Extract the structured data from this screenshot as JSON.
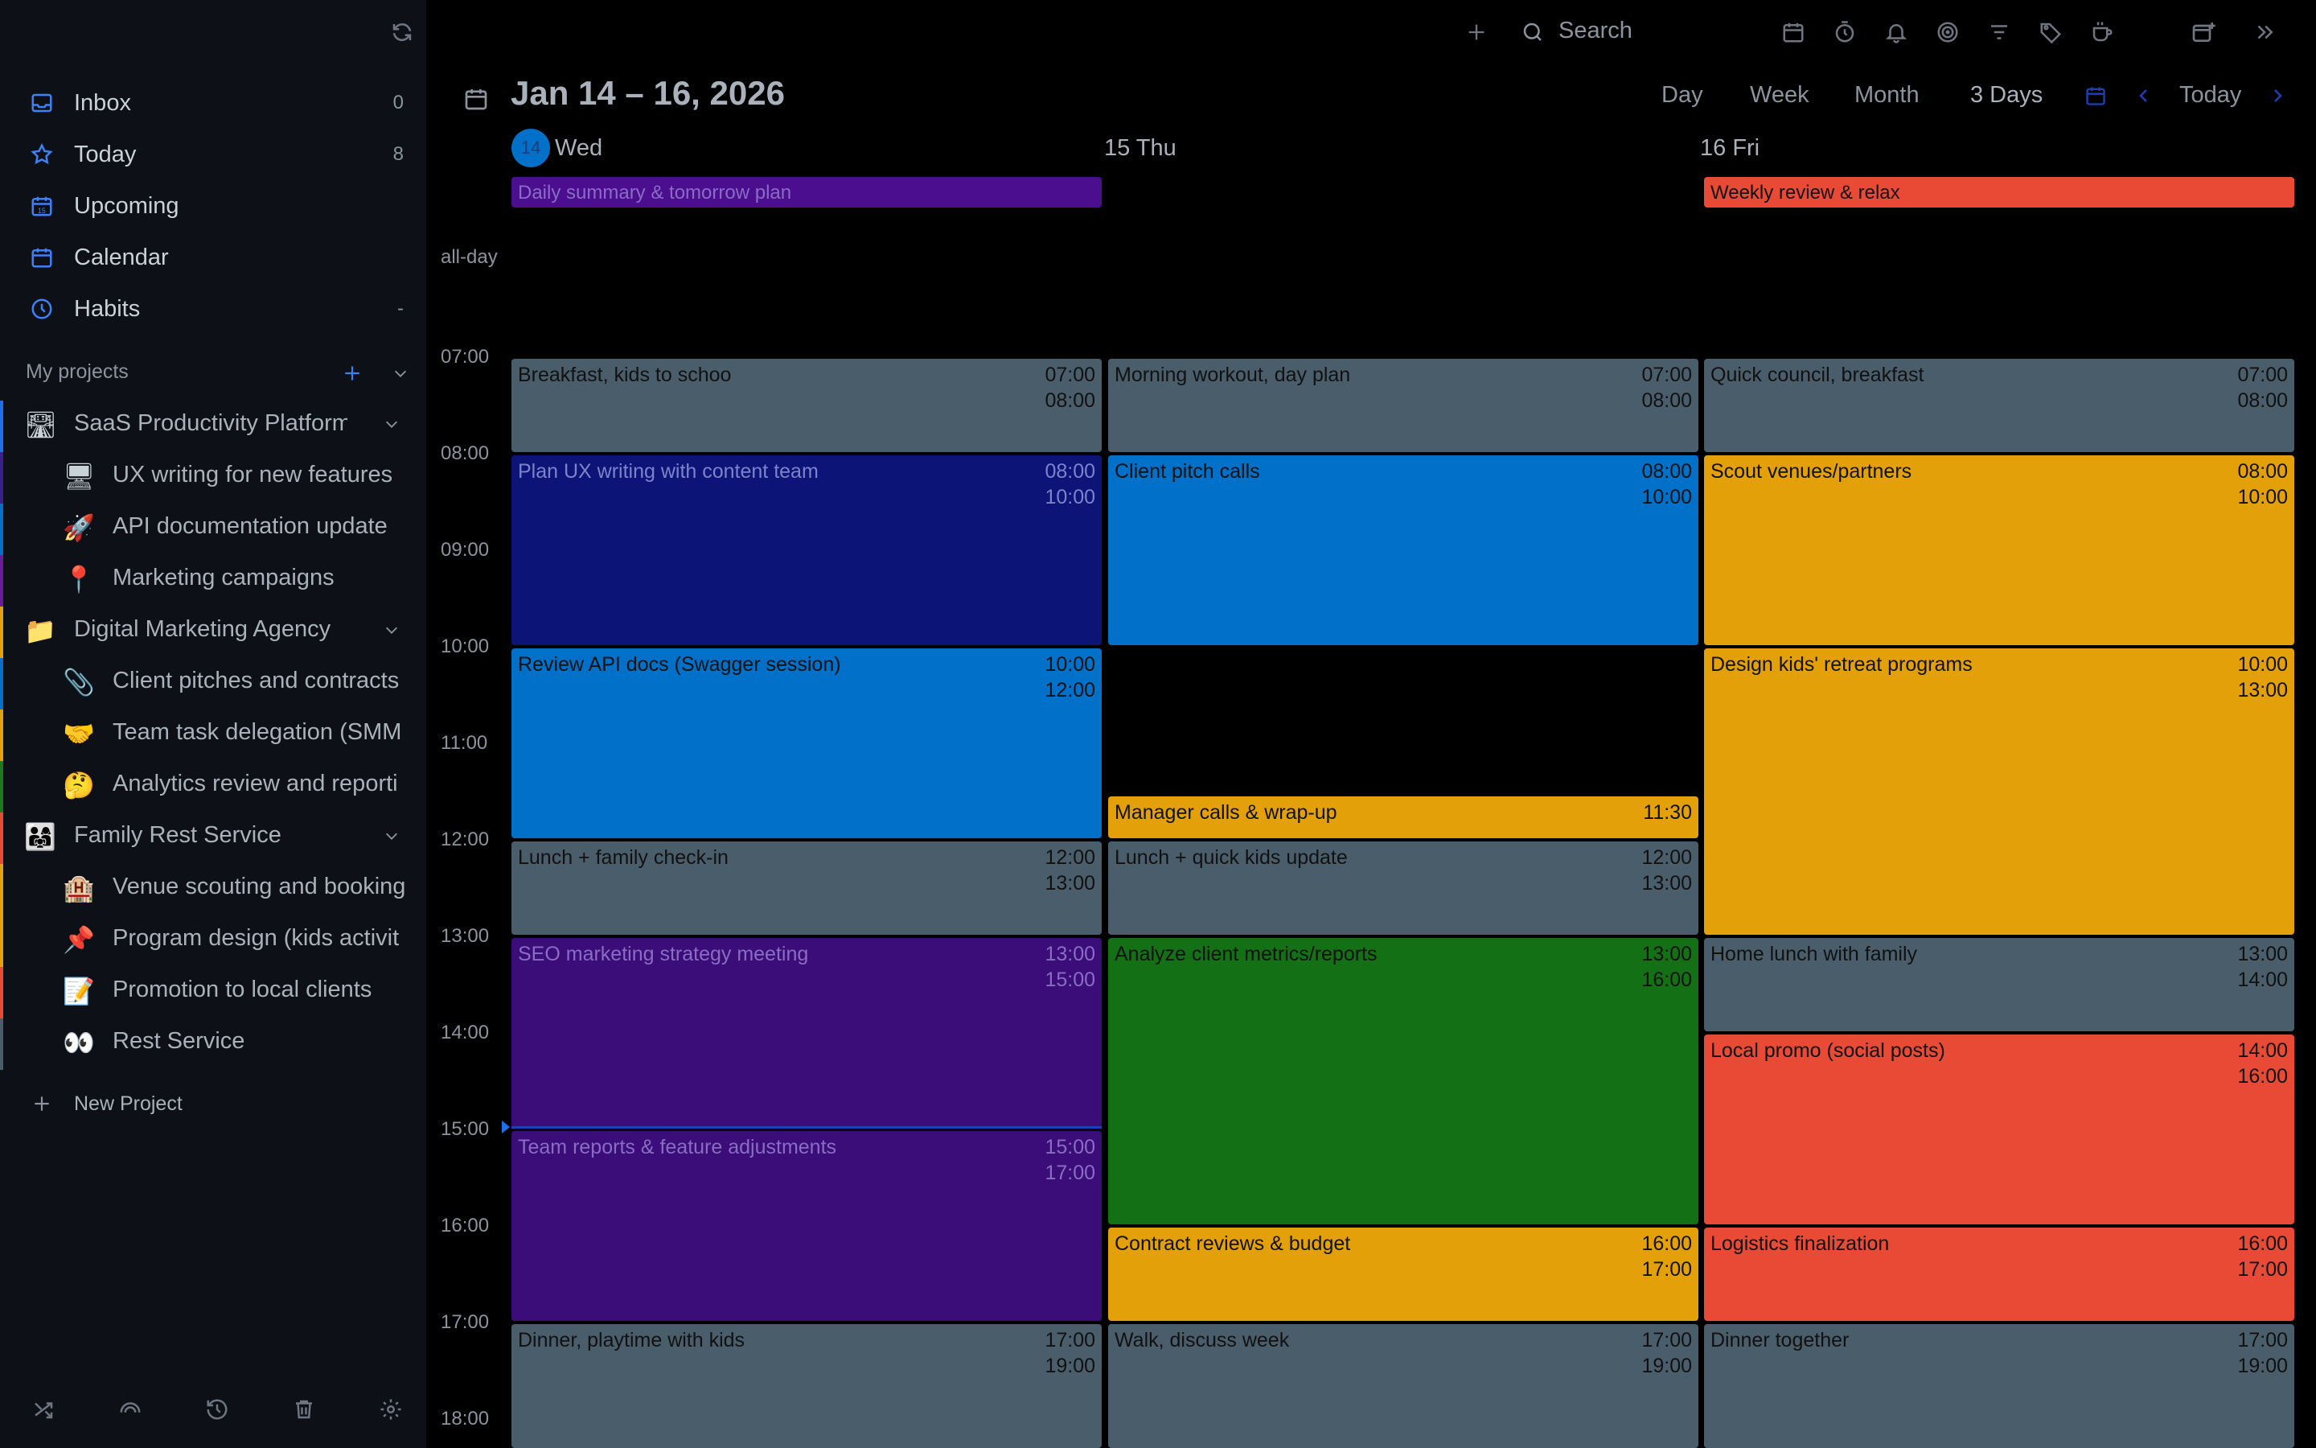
{
  "sidebar": {
    "nav": [
      {
        "label": "Inbox",
        "count": "0",
        "icon": "inbox-icon"
      },
      {
        "label": "Today",
        "count": "8",
        "icon": "star-icon"
      },
      {
        "label": "Upcoming",
        "count": "",
        "icon": "calendar-upcoming-icon"
      },
      {
        "label": "Calendar",
        "count": "",
        "icon": "calendar-icon"
      },
      {
        "label": "Habits",
        "count": "-",
        "icon": "habits-icon"
      }
    ],
    "projects_title": "My projects",
    "projects": [
      {
        "label": "SaaS Productivity Platform",
        "emoji": "🛣",
        "level": 0,
        "color": "#1f6feb"
      },
      {
        "label": "UX writing for new features",
        "emoji": "🖥",
        "level": 1,
        "color": "#3b1f8a"
      },
      {
        "label": "API documentation update",
        "emoji": "🚀",
        "level": 1,
        "color": "#0070c9"
      },
      {
        "label": "Marketing campaigns",
        "emoji": "📍",
        "level": 1,
        "color": "#6a1b9a"
      },
      {
        "label": "Digital Marketing Agency",
        "emoji": "📁",
        "level": 0,
        "color": "#e3a008"
      },
      {
        "label": "Client pitches and contracts",
        "emoji": "📎",
        "level": 1,
        "color": "#0070c9"
      },
      {
        "label": "Team task delegation (SMM",
        "emoji": "🤝",
        "level": 1,
        "color": "#e3a008"
      },
      {
        "label": "Analytics review and reporti",
        "emoji": "🤔",
        "level": 1,
        "color": "#1b7a1b"
      },
      {
        "label": "Family Rest Service",
        "emoji": "👨‍👩‍👧",
        "level": 0,
        "color": "#e84a36"
      },
      {
        "label": "Venue scouting and booking",
        "emoji": "🏨",
        "level": 1,
        "color": "#e3a008"
      },
      {
        "label": "Program design (kids activit",
        "emoji": "📌",
        "level": 1,
        "color": "#e3a008"
      },
      {
        "label": "Promotion to local clients",
        "emoji": "📝",
        "level": 1,
        "color": "#e84a36"
      },
      {
        "label": "Rest Service",
        "emoji": "👀",
        "level": 1,
        "color": "#4a5d6b"
      }
    ],
    "new_project": "New Project"
  },
  "topbar": {
    "search_label": "Search"
  },
  "header": {
    "date_range": "Jan 14 – 16, 2026",
    "views": [
      "Day",
      "Week",
      "Month",
      "3 Days"
    ],
    "today_label": "Today"
  },
  "days": [
    {
      "label": "Wed",
      "badge": "14"
    },
    {
      "label": "15 Thu",
      "badge": ""
    },
    {
      "label": "16 Fri",
      "badge": ""
    }
  ],
  "allday_label": "all-day",
  "hours": [
    "07:00",
    "08:00",
    "09:00",
    "10:00",
    "11:00",
    "12:00",
    "13:00",
    "14:00",
    "15:00",
    "16:00",
    "17:00",
    "18:00"
  ],
  "allday_events": [
    {
      "day": 0,
      "title": "Daily summary & tomorrow plan",
      "color": "#4a0e8f"
    },
    {
      "day": 2,
      "title": "Weekly review & relax",
      "color": "#e84a36"
    }
  ],
  "events": [
    {
      "day": 0,
      "title": "Breakfast, kids to schoo",
      "start": "07:00",
      "end": "08:00",
      "color": "#4a5d6b",
      "text": "#111111"
    },
    {
      "day": 0,
      "title": "Plan UX writing with content team",
      "start": "08:00",
      "end": "10:00",
      "color": "#0d1478",
      "text": "#7b84c9"
    },
    {
      "day": 0,
      "title": "Review API docs (Swagger session)",
      "start": "10:00",
      "end": "12:00",
      "color": "#0070c9",
      "text": "#111111"
    },
    {
      "day": 0,
      "title": "Lunch + family check-in",
      "start": "12:00",
      "end": "13:00",
      "color": "#4a5d6b",
      "text": "#111111"
    },
    {
      "day": 0,
      "title": "SEO marketing strategy meeting",
      "start": "13:00",
      "end": "15:00",
      "color": "#3b0d78",
      "text": "#8a6cc4"
    },
    {
      "day": 0,
      "title": "Team reports & feature adjustments",
      "start": "15:00",
      "end": "17:00",
      "color": "#3b0d78",
      "text": "#8a6cc4"
    },
    {
      "day": 0,
      "title": "Dinner, playtime with kids",
      "start": "17:00",
      "end": "19:00",
      "color": "#4a5d6b",
      "text": "#111111"
    },
    {
      "day": 1,
      "title": "Morning workout, day plan",
      "start": "07:00",
      "end": "08:00",
      "color": "#4a5d6b",
      "text": "#111111"
    },
    {
      "day": 1,
      "title": "Client pitch calls",
      "start": "08:00",
      "end": "10:00",
      "color": "#0070c9",
      "text": "#111111"
    },
    {
      "day": 1,
      "title": "Manager calls & wrap-up",
      "start": "11:30",
      "end": "",
      "color": "#e3a008",
      "text": "#111111"
    },
    {
      "day": 1,
      "title": "Lunch + quick kids update",
      "start": "12:00",
      "end": "13:00",
      "color": "#4a5d6b",
      "text": "#111111"
    },
    {
      "day": 1,
      "title": "Analyze client metrics/reports",
      "start": "13:00",
      "end": "16:00",
      "color": "#147014",
      "text": "#111111"
    },
    {
      "day": 1,
      "title": "Contract reviews & budget",
      "start": "16:00",
      "end": "17:00",
      "color": "#e3a008",
      "text": "#111111"
    },
    {
      "day": 1,
      "title": "Walk, discuss week",
      "start": "17:00",
      "end": "19:00",
      "color": "#4a5d6b",
      "text": "#111111"
    },
    {
      "day": 2,
      "title": "Quick council, breakfast",
      "start": "07:00",
      "end": "08:00",
      "color": "#4a5d6b",
      "text": "#111111"
    },
    {
      "day": 2,
      "title": "Scout venues/partners",
      "start": "08:00",
      "end": "10:00",
      "color": "#e3a008",
      "text": "#111111"
    },
    {
      "day": 2,
      "title": "Design kids' retreat programs",
      "start": "10:00",
      "end": "13:00",
      "color": "#e3a008",
      "text": "#111111"
    },
    {
      "day": 2,
      "title": "Home lunch with family",
      "start": "13:00",
      "end": "14:00",
      "color": "#4a5d6b",
      "text": "#111111"
    },
    {
      "day": 2,
      "title": "Local promo (social posts)",
      "start": "14:00",
      "end": "16:00",
      "color": "#e84a36",
      "text": "#111111"
    },
    {
      "day": 2,
      "title": "Logistics finalization",
      "start": "16:00",
      "end": "17:00",
      "color": "#e84a36",
      "text": "#111111"
    },
    {
      "day": 2,
      "title": "Dinner together",
      "start": "17:00",
      "end": "19:00",
      "color": "#4a5d6b",
      "text": "#111111"
    }
  ],
  "current_time": "15:00"
}
